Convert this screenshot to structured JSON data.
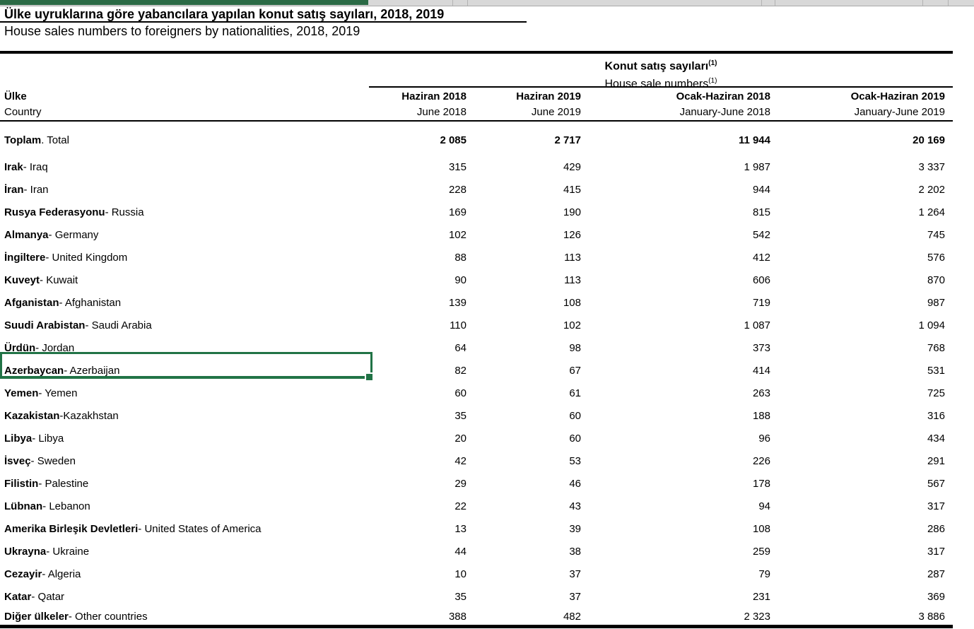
{
  "colors": {
    "selection_green": "#217346",
    "strip_green": "#2B6A45",
    "strip_gray": "#D8D8D8"
  },
  "header": {
    "title_tr": "Ülke uyruklarına göre yabancılara yapılan konut satış sayıları, 2018, 2019",
    "title_en": "House sales numbers to foreigners by nationalities, 2018, 2019"
  },
  "table": {
    "group_header": {
      "tr": "Konut satış sayıları",
      "en": "House sale numbers",
      "footnote": "(1)"
    },
    "country_col": {
      "tr": "Ülke",
      "en": "Country"
    },
    "columns": [
      {
        "tr": "Haziran 2018",
        "en": "June 2018"
      },
      {
        "tr": "Haziran 2019",
        "en": "June 2019"
      },
      {
        "tr": "Ocak-Haziran 2018",
        "en": "January-June 2018"
      },
      {
        "tr": "Ocak-Haziran 2019",
        "en": "January-June 2019"
      }
    ],
    "rows": [
      {
        "name": "Toplam",
        "suffix": " . Total",
        "values": [
          "2 085",
          "2 717",
          "11 944",
          "20 169"
        ],
        "total": true
      },
      {
        "name": "Irak",
        "suffix": " - Iraq",
        "values": [
          "315",
          "429",
          "1 987",
          "3 337"
        ]
      },
      {
        "name": "İran",
        "suffix": " - Iran",
        "values": [
          "228",
          "415",
          "944",
          "2 202"
        ]
      },
      {
        "name": "Rusya Federasyonu",
        "suffix": " - Russia",
        "values": [
          "169",
          "190",
          "815",
          "1 264"
        ]
      },
      {
        "name": "Almanya",
        "suffix": " - Germany",
        "values": [
          "102",
          "126",
          "542",
          "745"
        ]
      },
      {
        "name": "İngiltere",
        "suffix": " - United Kingdom",
        "values": [
          "88",
          "113",
          "412",
          "576"
        ]
      },
      {
        "name": "Kuveyt",
        "suffix": " - Kuwait",
        "values": [
          "90",
          "113",
          "606",
          "870"
        ]
      },
      {
        "name": "Afganistan",
        "suffix": " - Afghanistan",
        "values": [
          "139",
          "108",
          "719",
          "987"
        ]
      },
      {
        "name": "Suudi Arabistan",
        "suffix": " - Saudi Arabia",
        "values": [
          "110",
          "102",
          "1 087",
          "1 094"
        ]
      },
      {
        "name": "Ürdün",
        "suffix": " - Jordan",
        "values": [
          "64",
          "98",
          "373",
          "768"
        ]
      },
      {
        "name": "Azerbaycan",
        "suffix": " - Azerbaijan",
        "values": [
          "82",
          "67",
          "414",
          "531"
        ],
        "selected": true
      },
      {
        "name": "Yemen",
        "suffix": " - Yemen",
        "values": [
          "60",
          "61",
          "263",
          "725"
        ]
      },
      {
        "name": "Kazakistan",
        "suffix": " -Kazakhstan",
        "values": [
          "35",
          "60",
          "188",
          "316"
        ]
      },
      {
        "name": "Libya",
        "suffix": " - Libya",
        "values": [
          "20",
          "60",
          "96",
          "434"
        ]
      },
      {
        "name": "İsveç",
        "suffix": " - Sweden",
        "values": [
          "42",
          "53",
          "226",
          "291"
        ]
      },
      {
        "name": "Filistin",
        "suffix": " - Palestine",
        "values": [
          "29",
          "46",
          "178",
          "567"
        ]
      },
      {
        "name": "Lübnan",
        "suffix": " - Lebanon",
        "values": [
          "22",
          "43",
          "94",
          "317"
        ]
      },
      {
        "name": "Amerika Birleşik Devletleri",
        "suffix": " - United States of America",
        "values": [
          "13",
          "39",
          "108",
          "286"
        ]
      },
      {
        "name": "Ukrayna",
        "suffix": " - Ukraine",
        "values": [
          "44",
          "38",
          "259",
          "317"
        ]
      },
      {
        "name": "Cezayir",
        "suffix": " - Algeria",
        "values": [
          "10",
          "37",
          "79",
          "287"
        ]
      },
      {
        "name": "Katar",
        "suffix": " - Qatar",
        "values": [
          "35",
          "37",
          "231",
          "369"
        ]
      },
      {
        "name": "Diğer ülkeler",
        "suffix": " - Other countries",
        "values": [
          "388",
          "482",
          "2 323",
          "3 886"
        ],
        "last": true
      }
    ]
  }
}
